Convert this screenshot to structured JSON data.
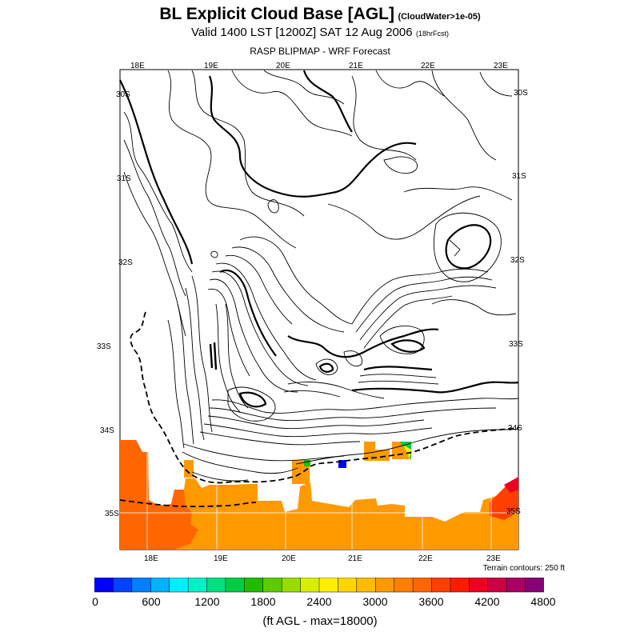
{
  "header": {
    "title": "BL Explicit Cloud Base [AGL]",
    "title_note": "(CloudWater>1e-05)",
    "valid_line": "Valid 1400 LST [1200Z] SAT 12 Aug 2006",
    "forecast_note": "(18hrFcst)",
    "model_line": "RASP BLIPMAP - WRF Forecast"
  },
  "map": {
    "top_lon_labels": [
      "18E",
      "19E",
      "20E",
      "21E",
      "22E",
      "23E"
    ],
    "bottom_lon_labels": [
      "18E",
      "19E",
      "20E",
      "21E",
      "22E",
      "23E"
    ],
    "left_lat_labels": [
      "30S",
      "31S",
      "32S",
      "33S",
      "34S",
      "35S"
    ],
    "right_lat_labels": [
      "30S",
      "31S",
      "32S",
      "33S",
      "34S",
      "35S"
    ],
    "terrain_note": "Terrain contours: 250 ft",
    "colors": {
      "orange": "#ff9900",
      "dark_orange": "#ff6600",
      "blue": "#0000ff",
      "red": "#ff1a1a"
    }
  },
  "colorbar": {
    "labels": [
      "0",
      "600",
      "1200",
      "1800",
      "2400",
      "3000",
      "3600",
      "4200",
      "4800"
    ],
    "colors": [
      "#0000ff",
      "#0044ff",
      "#007fff",
      "#00b2ff",
      "#00eeff",
      "#00f0c8",
      "#00e07f",
      "#00cc44",
      "#22bb00",
      "#5ccc00",
      "#99dd00",
      "#d8ee00",
      "#ffee00",
      "#ffd400",
      "#ffbb00",
      "#ff9900",
      "#ff7f00",
      "#ff6600",
      "#ff3f00",
      "#ff1a00",
      "#ee0022",
      "#cc0044",
      "#aa0066",
      "#880077"
    ],
    "units": "(ft AGL - max=18000)"
  }
}
